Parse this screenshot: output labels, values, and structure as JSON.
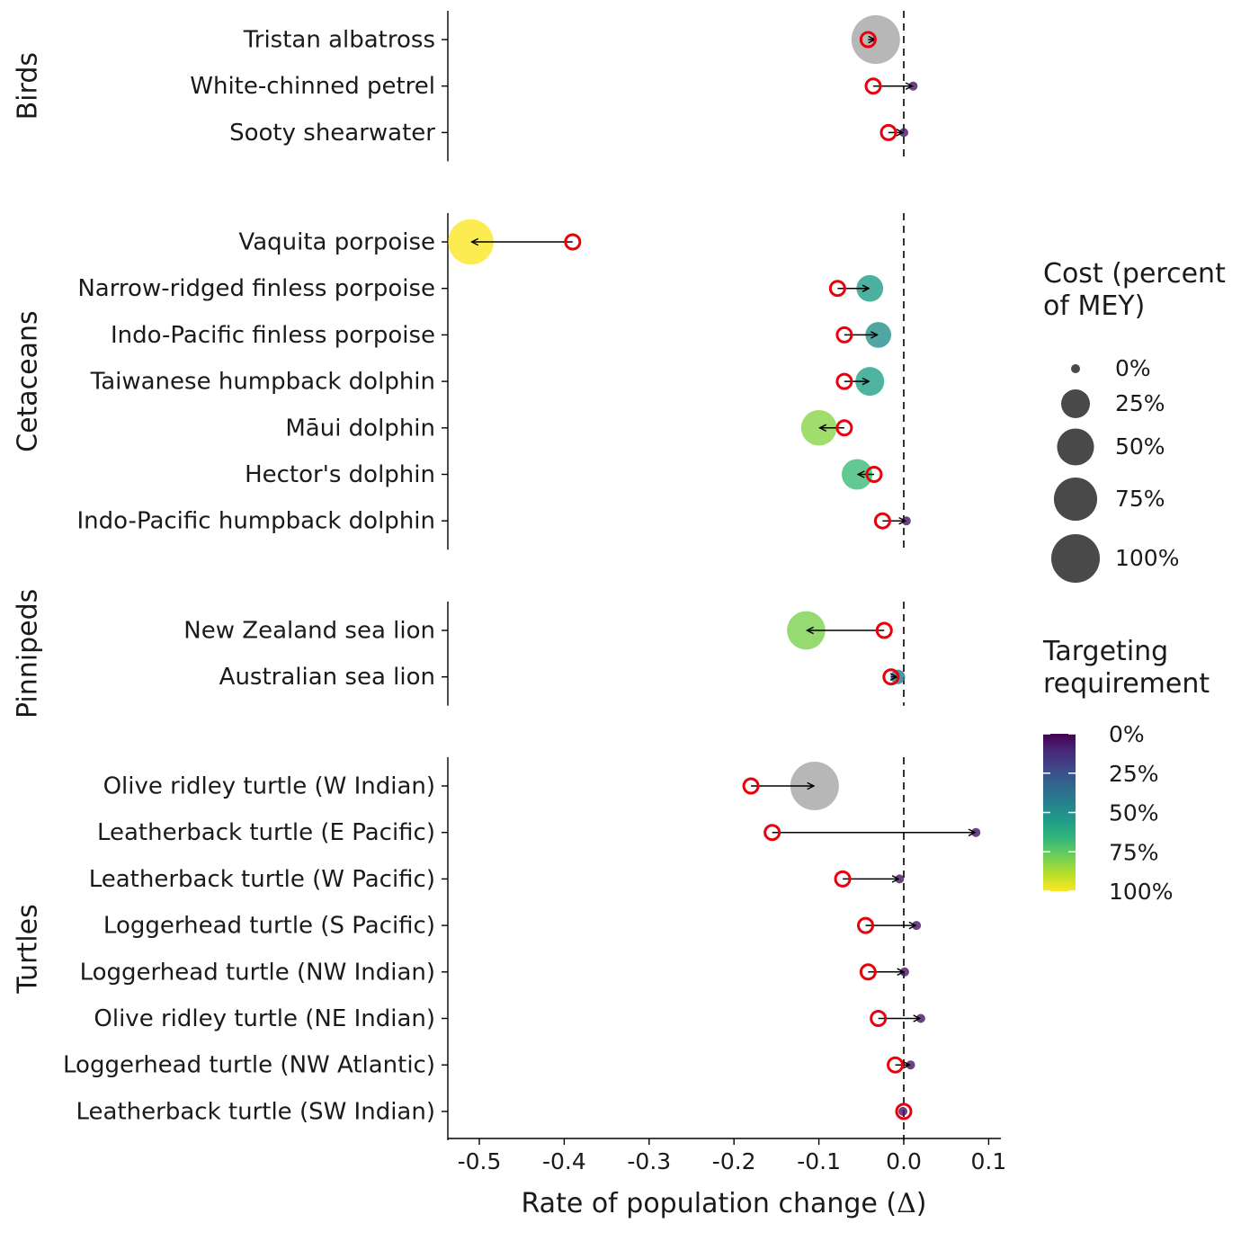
{
  "chart_data": {
    "type": "scatter",
    "subtype": "arrow-dot-plot",
    "xlabel": "Rate of population change (",
    "xlabel_symbol": "Δ",
    "xlabel_close": ")",
    "xlim": [
      -0.54,
      0.115
    ],
    "xticks": [
      -0.5,
      -0.4,
      -0.3,
      -0.2,
      -0.1,
      0.0,
      0.1
    ],
    "xtick_labels": [
      "-0.5",
      "-0.4",
      "-0.3",
      "-0.2",
      "-0.1",
      "0.0",
      "0.1"
    ],
    "reference_line": 0.0,
    "start_marker_color": "#e8000b",
    "na_color": "#b3b3b3",
    "panels": [
      {
        "name": "Birds",
        "species": [
          {
            "label": "Tristan albatross",
            "start": -0.042,
            "end": -0.033,
            "cost": 100,
            "targeting": null
          },
          {
            "label": "White-chinned petrel",
            "start": -0.036,
            "end": 0.011,
            "cost": 0,
            "targeting": 5
          },
          {
            "label": "Sooty shearwater",
            "start": -0.018,
            "end": 0.0,
            "cost": 0,
            "targeting": 5
          }
        ]
      },
      {
        "name": "Cetaceans",
        "species": [
          {
            "label": "Vaquita porpoise",
            "start": -0.39,
            "end": -0.51,
            "cost": 85,
            "targeting": 100
          },
          {
            "label": "Narrow-ridged finless porpoise",
            "start": -0.078,
            "end": -0.04,
            "cost": 20,
            "targeting": 55
          },
          {
            "label": "Indo-Pacific finless porpoise",
            "start": -0.07,
            "end": -0.03,
            "cost": 18,
            "targeting": 50
          },
          {
            "label": "Taiwanese humpback dolphin",
            "start": -0.07,
            "end": -0.04,
            "cost": 25,
            "targeting": 57
          },
          {
            "label": "Māui dolphin",
            "start": -0.07,
            "end": -0.1,
            "cost": 45,
            "targeting": 82
          },
          {
            "label": "Hector's dolphin",
            "start": -0.035,
            "end": -0.055,
            "cost": 30,
            "targeting": 68
          },
          {
            "label": "Indo-Pacific humpback dolphin",
            "start": -0.025,
            "end": 0.003,
            "cost": 0,
            "targeting": 5
          }
        ]
      },
      {
        "name": "Pinnipeds",
        "species": [
          {
            "label": "New Zealand sea lion",
            "start": -0.023,
            "end": -0.115,
            "cost": 55,
            "targeting": 80
          },
          {
            "label": "Australian sea lion",
            "start": -0.015,
            "end": -0.007,
            "cost": 2,
            "targeting": 40
          }
        ]
      },
      {
        "name": "Turtles",
        "species": [
          {
            "label": "Olive ridley turtle (W Indian)",
            "start": -0.18,
            "end": -0.105,
            "cost": 100,
            "targeting": null
          },
          {
            "label": "Leatherback turtle (E Pacific)",
            "start": -0.155,
            "end": 0.085,
            "cost": 0,
            "targeting": 5
          },
          {
            "label": "Leatherback turtle (W Pacific)",
            "start": -0.072,
            "end": -0.005,
            "cost": 0,
            "targeting": 5
          },
          {
            "label": "Loggerhead turtle (S Pacific)",
            "start": -0.045,
            "end": 0.015,
            "cost": 0,
            "targeting": 5
          },
          {
            "label": "Loggerhead turtle (NW Indian)",
            "start": -0.042,
            "end": 0.001,
            "cost": 0,
            "targeting": 5
          },
          {
            "label": "Olive ridley turtle (NE Indian)",
            "start": -0.03,
            "end": 0.02,
            "cost": 0,
            "targeting": 5
          },
          {
            "label": "Loggerhead turtle (NW Atlantic)",
            "start": -0.01,
            "end": 0.008,
            "cost": 0,
            "targeting": 5
          },
          {
            "label": "Leatherback turtle (SW Indian)",
            "start": 0.0,
            "end": -0.001,
            "cost": 0,
            "targeting": 5
          }
        ]
      }
    ],
    "legend": {
      "size": {
        "title": [
          "Cost (percent",
          "of MEY)"
        ],
        "values": [
          0,
          25,
          50,
          75,
          100
        ],
        "labels": [
          "0%",
          "25%",
          "50%",
          "75%",
          "100%"
        ],
        "color": "#3a3a3a"
      },
      "color": {
        "title": [
          "Targeting",
          "requirement"
        ],
        "values": [
          0,
          25,
          50,
          75,
          100
        ],
        "labels": [
          "0%",
          "25%",
          "50%",
          "75%",
          "100%"
        ],
        "colormap": "viridis",
        "stops": [
          "#440154",
          "#482878",
          "#3e4989",
          "#31688e",
          "#26828e",
          "#1f9e89",
          "#35b779",
          "#6ece58",
          "#b5de2b",
          "#fde725"
        ]
      }
    }
  }
}
